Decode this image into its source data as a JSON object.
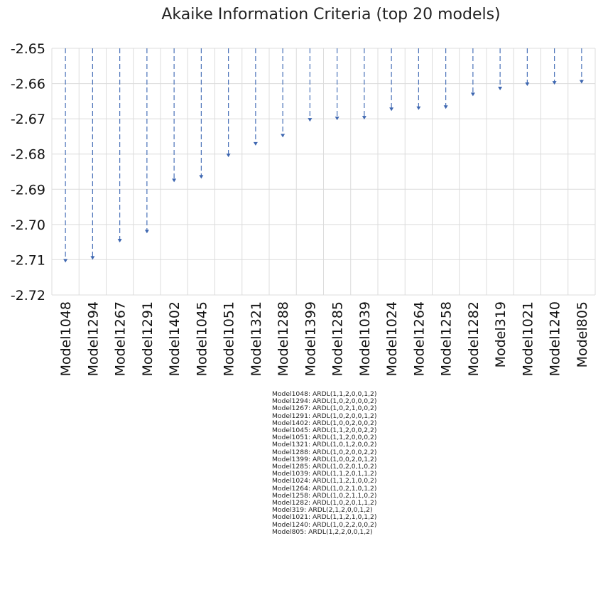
{
  "chart_data": {
    "type": "line",
    "title": "Akaike Information Criteria (top 20 models)",
    "categories": [
      "Model1048",
      "Model1294",
      "Model1267",
      "Model1291",
      "Model1402",
      "Model1045",
      "Model1051",
      "Model1321",
      "Model1288",
      "Model1399",
      "Model1285",
      "Model1039",
      "Model1024",
      "Model1264",
      "Model1258",
      "Model1282",
      "Model319",
      "Model1021",
      "Model1240",
      "Model805"
    ],
    "values": [
      -2.7106,
      -2.7098,
      -2.7049,
      -2.7023,
      -2.6878,
      -2.6868,
      -2.6807,
      -2.6774,
      -2.6751,
      -2.6706,
      -2.6702,
      -2.67,
      -2.6676,
      -2.6673,
      -2.667,
      -2.6634,
      -2.6617,
      -2.6605,
      -2.6601,
      -2.6598
    ],
    "ylim": [
      -2.72,
      -2.65
    ],
    "yticks": [
      "-2.65",
      "-2.66",
      "-2.67",
      "-2.68",
      "-2.69",
      "-2.70",
      "-2.71",
      "-2.72"
    ],
    "ytick_values": [
      -2.65,
      -2.66,
      -2.67,
      -2.68,
      -2.69,
      -2.7,
      -2.71,
      -2.72
    ],
    "y_inverted": true,
    "grid": true,
    "style": "dashed-drop-lines-with-arrowheads",
    "colors": {
      "drop_line": "#4a72b8",
      "grid": "#dcdcdc"
    }
  },
  "legend_notes": [
    "Model1048: ARDL(1,1,2,0,0,1,2)",
    "Model1294: ARDL(1,0,2,0,0,0,2)",
    "Model1267: ARDL(1,0,2,1,0,0,2)",
    "Model1291: ARDL(1,0,2,0,0,1,2)",
    "Model1402: ARDL(1,0,0,2,0,0,2)",
    "Model1045: ARDL(1,1,2,0,0,2,2)",
    "Model1051: ARDL(1,1,2,0,0,0,2)",
    "Model1321: ARDL(1,0,1,2,0,0,2)",
    "Model1288: ARDL(1,0,2,0,0,2,2)",
    "Model1399: ARDL(1,0,0,2,0,1,2)",
    "Model1285: ARDL(1,0,2,0,1,0,2)",
    "Model1039: ARDL(1,1,2,0,1,1,2)",
    "Model1024: ARDL(1,1,2,1,0,0,2)",
    "Model1264: ARDL(1,0,2,1,0,1,2)",
    "Model1258: ARDL(1,0,2,1,1,0,2)",
    "Model1282: ARDL(1,0,2,0,1,1,2)",
    "Model319: ARDL(2,1,2,0,0,1,2)",
    "Model1021: ARDL(1,1,2,1,0,1,2)",
    "Model1240: ARDL(1,0,2,2,0,0,2)",
    "Model805: ARDL(1,2,2,0,0,1,2)"
  ]
}
